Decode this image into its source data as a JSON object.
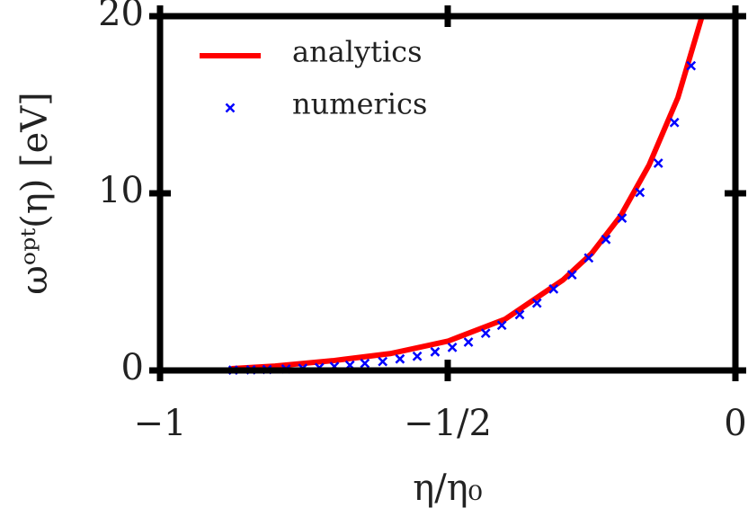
{
  "chart_data": {
    "type": "line",
    "xlabel": "η/η₀",
    "ylabel": "ωᵒᵖᵗ(η) [eV]",
    "xlim": [
      -1,
      0
    ],
    "ylim": [
      0,
      20
    ],
    "xticks": [
      {
        "value": -1,
        "label": "−1"
      },
      {
        "value": -0.5,
        "label": "−1/2"
      },
      0
    ],
    "yticks": [
      0,
      10,
      20
    ],
    "legend": "upper left",
    "series": [
      {
        "name": "analytics",
        "color": "#ff0000",
        "mode": "line",
        "x": [
          -0.876,
          -0.8,
          -0.7,
          -0.6,
          -0.5,
          -0.4,
          -0.3,
          -0.25,
          -0.2,
          -0.15,
          -0.1,
          -0.058
        ],
        "values": [
          0.1,
          0.25,
          0.55,
          0.95,
          1.65,
          2.9,
          5.1,
          6.6,
          8.7,
          11.6,
          15.4,
          20
        ]
      },
      {
        "name": "numerics",
        "color": "#0000ff",
        "mode": "markers",
        "x": [
          -0.873,
          -0.842,
          -0.814,
          -0.781,
          -0.752,
          -0.723,
          -0.697,
          -0.67,
          -0.644,
          -0.613,
          -0.583,
          -0.553,
          -0.522,
          -0.492,
          -0.464,
          -0.434,
          -0.406,
          -0.375,
          -0.345,
          -0.316,
          -0.284,
          -0.255,
          -0.225,
          -0.197,
          -0.166,
          -0.134,
          -0.106,
          -0.077
        ],
        "values": [
          0.02,
          0.03,
          0.05,
          0.08,
          0.12,
          0.16,
          0.22,
          0.3,
          0.4,
          0.5,
          0.65,
          0.8,
          1.05,
          1.3,
          1.6,
          2.1,
          2.55,
          3.15,
          3.8,
          4.6,
          5.4,
          6.35,
          7.4,
          8.6,
          10.05,
          11.7,
          14.0,
          17.2
        ]
      }
    ]
  }
}
